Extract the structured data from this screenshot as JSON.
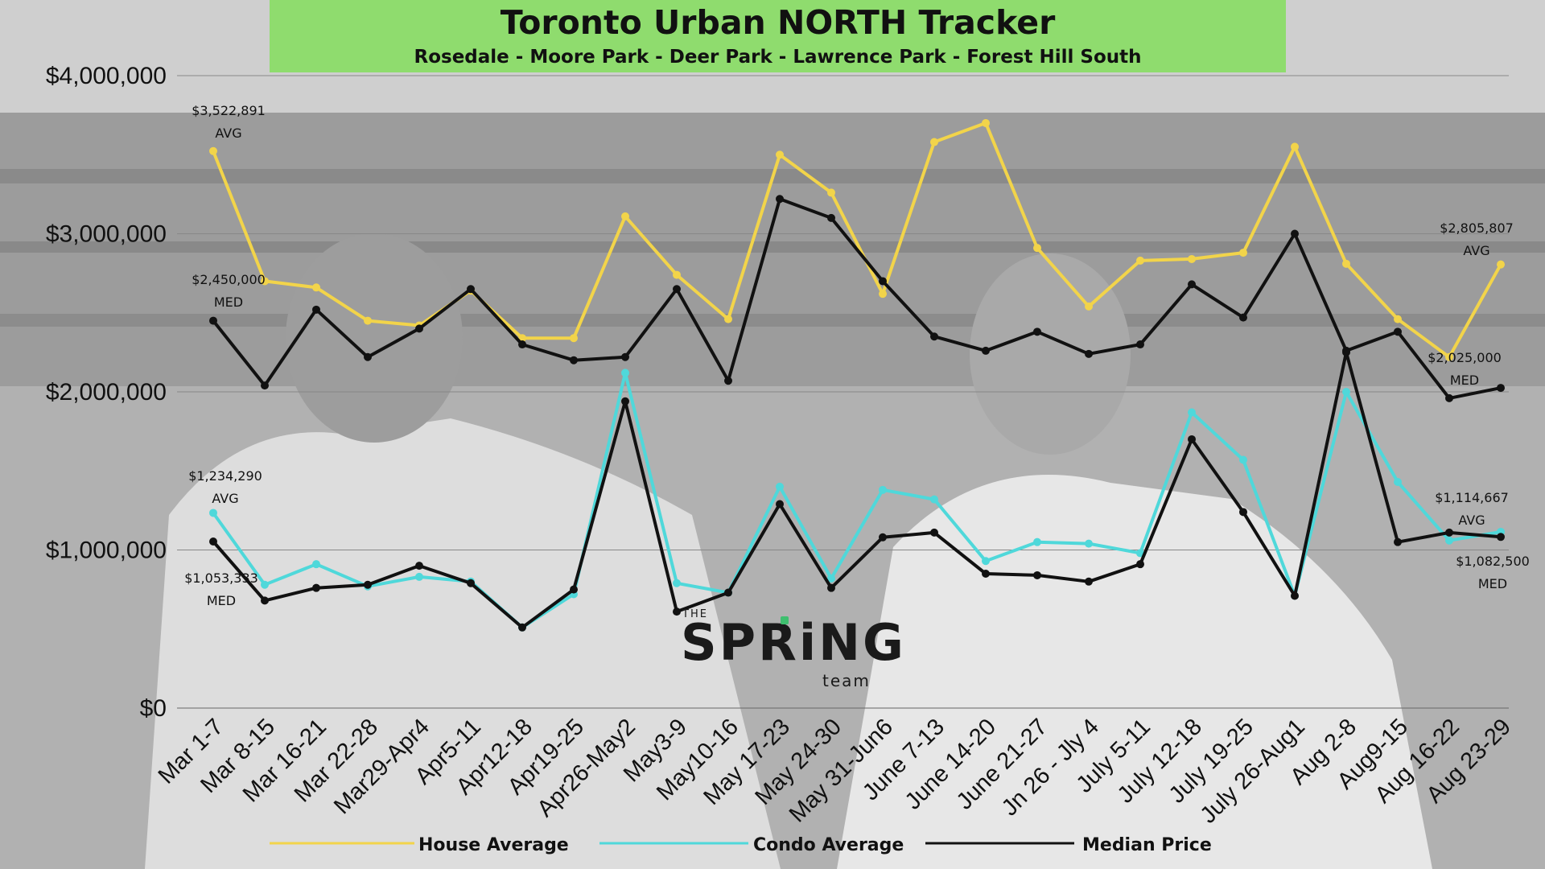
{
  "header": {
    "title": "Toronto Urban NORTH Tracker",
    "subtitle": "Rosedale - Moore Park - Deer Park - Lawrence Park - Forest Hill South"
  },
  "logo": {
    "the": "THE",
    "spring": "SPRiNG",
    "team": "team"
  },
  "colors": {
    "house": "#f2d44a",
    "condo": "#4fd8da",
    "median": "#111111",
    "title_bg": "#8fdc6e"
  },
  "chart_data": {
    "type": "line",
    "categories": [
      "Mar 1-7",
      "Mar 8-15",
      "Mar 16-21",
      "Mar 22-28",
      "Mar29-Apr4",
      "Apr5-11",
      "Apr12-18",
      "Apr19-25",
      "Apr26-May2",
      "May3-9",
      "May10-16",
      "May 17-23",
      "May 24-30",
      "May 31-Jun6",
      "June 7-13",
      "June 14-20",
      "June 21-27",
      "Jn 26 - Jly 4",
      "July 5-11",
      "July 12-18",
      "July 19-25",
      "July 26-Aug1",
      "Aug 2-8",
      "Aug9-15",
      "Aug 16-22",
      "Aug 23-29"
    ],
    "ylim": [
      0,
      4000000
    ],
    "yticks": [
      0,
      1000000,
      2000000,
      3000000,
      4000000
    ],
    "ytick_labels": [
      "$0",
      "$1,000,000",
      "$2,000,000",
      "$3,000,000",
      "$4,000,000"
    ],
    "grid": true,
    "legend_position": "bottom",
    "series": [
      {
        "name": "House Average",
        "color_key": "house",
        "values": [
          3522891,
          2700000,
          2660000,
          2450000,
          2420000,
          2640000,
          2340000,
          2340000,
          3110000,
          2740000,
          2460000,
          3500000,
          3260000,
          2620000,
          3580000,
          3700000,
          2910000,
          2540000,
          2830000,
          2840000,
          2880000,
          3550000,
          2810000,
          2460000,
          2220000,
          2805807
        ]
      },
      {
        "name": "Condo Average",
        "color_key": "condo",
        "values": [
          1234290,
          780000,
          910000,
          770000,
          830000,
          800000,
          510000,
          720000,
          2120000,
          790000,
          730000,
          1400000,
          820000,
          1380000,
          1320000,
          930000,
          1050000,
          1040000,
          980000,
          1870000,
          1570000,
          710000,
          2000000,
          1430000,
          1060000,
          1114667
        ]
      },
      {
        "name": "Median Price",
        "color_key": "median",
        "values": [
          2450000,
          2040000,
          2520000,
          2220000,
          2400000,
          2650000,
          2300000,
          2200000,
          2220000,
          2650000,
          2070000,
          3220000,
          3100000,
          2700000,
          2350000,
          2260000,
          2380000,
          2240000,
          2300000,
          2680000,
          2470000,
          3000000,
          2260000,
          2380000,
          1960000,
          2025000
        ],
        "values_condo_median": [
          1053333,
          680000,
          760000,
          780000,
          900000,
          790000,
          510000,
          750000,
          1940000,
          610000,
          730000,
          1290000,
          760000,
          1080000,
          1110000,
          850000,
          840000,
          800000,
          910000,
          1700000,
          1240000,
          710000,
          2250000,
          1050000,
          1110000,
          1082500
        ]
      }
    ],
    "annotations": [
      {
        "label": "$3,522,891",
        "sub": "AVG",
        "series": 0,
        "index": 0
      },
      {
        "label": "$2,450,000",
        "sub": "MED",
        "series": 2,
        "index": 0
      },
      {
        "label": "$1,234,290",
        "sub": "AVG",
        "series": 1,
        "index": 0
      },
      {
        "label": "$1,053,333",
        "sub": "MED",
        "series": 2,
        "index": 0
      },
      {
        "label": "$2,805,807",
        "sub": "AVG",
        "series": 0,
        "index": 25
      },
      {
        "label": "$2,025,000",
        "sub": "MED",
        "series": 2,
        "index": 25
      },
      {
        "label": "$1,114,667",
        "sub": "AVG",
        "series": 1,
        "index": 25
      },
      {
        "label": "$1,082,500",
        "sub": "MED",
        "series": 2,
        "index": 25
      }
    ]
  }
}
